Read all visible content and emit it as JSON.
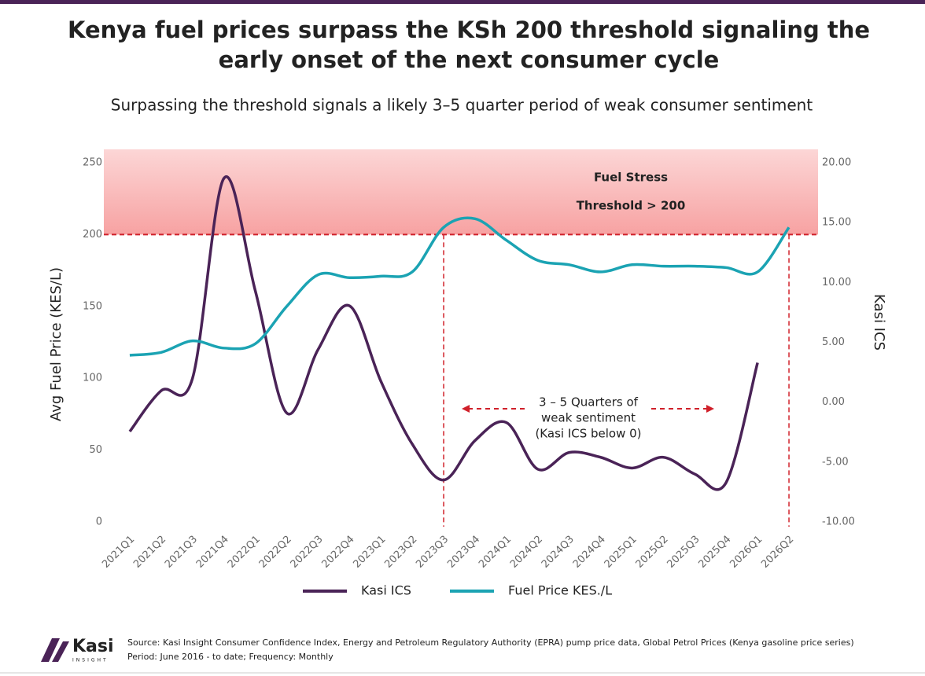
{
  "chart_data": {
    "type": "line",
    "title": [
      "Kenya fuel prices surpass the KSh 200 threshold signaling the",
      "early onset of the next consumer cycle"
    ],
    "subtitle": "Surpassing the threshold signals a likely 3–5 quarter period of weak consumer sentiment",
    "categories": [
      "2021Q1",
      "2021Q2",
      "2021Q3",
      "2021Q4",
      "2022Q1",
      "2022Q2",
      "2022Q3",
      "2022Q4",
      "2023Q1",
      "2023Q2",
      "2023Q3",
      "2023Q4",
      "2024Q1",
      "2024Q2",
      "2024Q3",
      "2024Q4",
      "2025Q1",
      "2025Q2",
      "2025Q3",
      "2025Q4",
      "2026Q1",
      "2026Q2"
    ],
    "series": [
      {
        "name": "Kasi ICS",
        "color": "#4a2357",
        "axis": "y2",
        "values": [
          -2.45,
          0.96,
          2.0,
          18.7,
          9.3,
          -0.9,
          4.4,
          8.05,
          1.75,
          -3.5,
          -6.5,
          -3.2,
          -1.7,
          -5.6,
          -4.2,
          -4.6,
          -5.5,
          -4.6,
          -6.0,
          -6.7,
          3.3,
          null
        ]
      },
      {
        "name": "Fuel Price KES./L",
        "color": "#1ba3b3",
        "values": [
          116,
          118,
          126,
          121,
          124,
          150,
          172,
          170,
          171,
          174,
          205,
          211,
          196,
          182,
          179,
          174,
          179,
          178,
          178,
          177,
          174,
          205
        ]
      }
    ],
    "ylabel": "Avg Fuel Price (KES/L)",
    "y2label": "Kasi ICS",
    "ylim": [
      0,
      250
    ],
    "yticks": [
      0,
      50,
      100,
      150,
      200,
      250
    ],
    "y2lim": [
      -10,
      20
    ],
    "y2ticks": [
      {
        "value": -10,
        "label": "-10.00"
      },
      {
        "value": -5,
        "label": "-5.00"
      },
      {
        "value": 0,
        "label": "0.00"
      },
      {
        "value": 5,
        "label": "5.00"
      },
      {
        "value": 10,
        "label": "10.00"
      },
      {
        "value": 15,
        "label": "15.00"
      },
      {
        "value": 20,
        "label": "20.00"
      }
    ],
    "threshold": 200,
    "band_labels": [
      "Fuel Stress",
      "Threshold > 200"
    ],
    "markers": [
      "2023Q3",
      "2026Q2"
    ],
    "annotation": [
      "3 – 5 Quarters of",
      "weak sentiment",
      "(Kasi ICS below 0)"
    ],
    "source": [
      "Source: Kasi Insight Consumer Confidence Index, Energy and Petroleum Regulatory Authority (EPRA) pump price data, Global Petrol Prices (Kenya gasoline price series)",
      "Period: June 2016 - to date; Frequency: Monthly"
    ],
    "logo": [
      "Kasi",
      "INSIGHT"
    ]
  }
}
